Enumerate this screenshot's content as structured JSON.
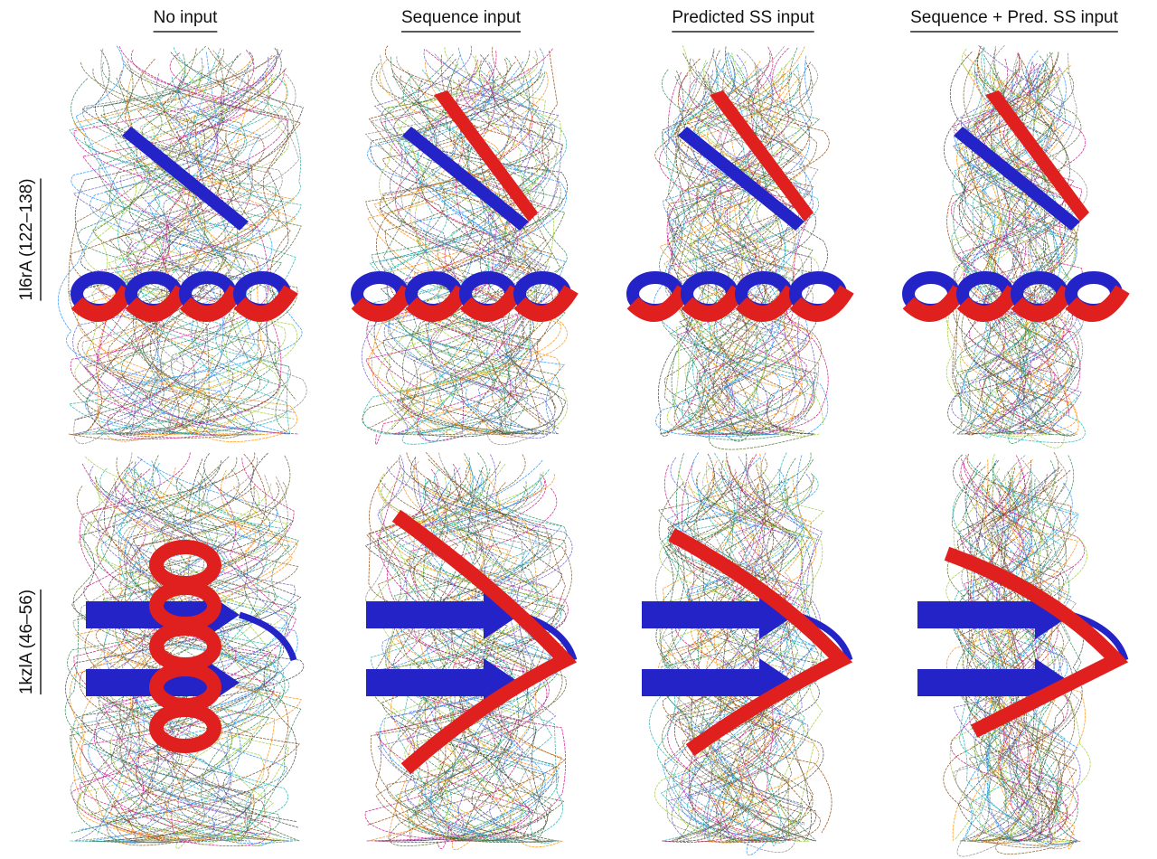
{
  "columns": [
    "No input",
    "Sequence input",
    "Predicted SS input",
    "Sequence + Pred. SS input"
  ],
  "rows": [
    "1l6rA (122–138)",
    "1kzlA (46–56)"
  ]
}
